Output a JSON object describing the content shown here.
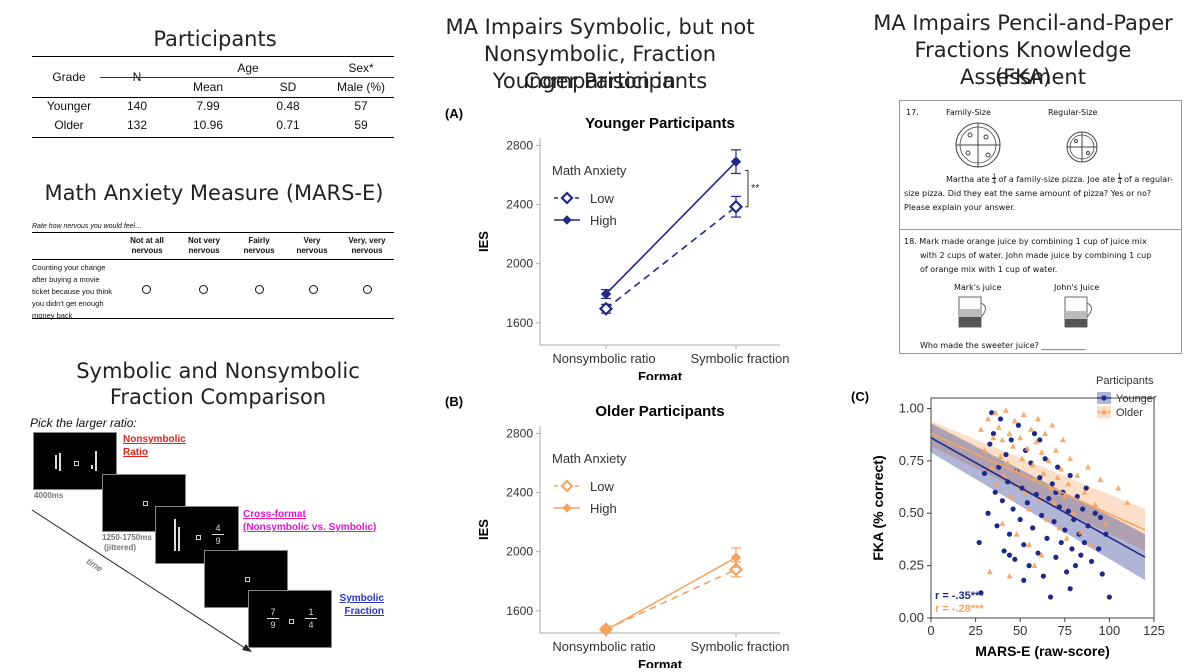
{
  "colors": {
    "navy": "#1f2a86",
    "orange": "#f4a462",
    "red": "#e0241b",
    "magenta": "#e312d6",
    "blue": "#2538c7",
    "gray": "#8c8c8c"
  },
  "participants": {
    "title": "Participants",
    "headers": {
      "grade": "Grade",
      "n": "N",
      "age": "Age",
      "sex": "Sex*",
      "mean": "Mean",
      "sd": "SD",
      "male": "Male (%)"
    },
    "rows": [
      {
        "grade": "Younger",
        "n": "140",
        "mean": "7.99",
        "sd": "0.48",
        "male": "57"
      },
      {
        "grade": "Older",
        "n": "132",
        "mean": "10.96",
        "sd": "0.71",
        "male": "59"
      }
    ]
  },
  "mars": {
    "title": "Math Anxiety Measure (MARS-E)",
    "prompt": "Rate how nervous you would feel…",
    "columns": [
      "Not at all nervous",
      "Not very nervous",
      "Fairly nervous",
      "Very nervous",
      "Very, very nervous"
    ],
    "item": "Counting your change after buying a movie ticket because you think you didn't get enough money back"
  },
  "comparison": {
    "title_line1": "Symbolic and Nonsymbolic",
    "title_line2": "Fraction Comparison",
    "instruction": "Pick the larger ratio:",
    "label_nonsym": "Nonsymbolic Ratio",
    "label_cross_1": "Cross-format",
    "label_cross_2": "(Nonsymbolic vs. Symbolic)",
    "label_sym": "Symbolic Fraction",
    "t1": "4000ms",
    "t2_1": "1250-1750ms",
    "t2_2": "(jittered)",
    "time": "time",
    "cross_num": "4",
    "cross_den": "9",
    "sym_left_num": "7",
    "sym_left_den": "9",
    "sym_right_num": "1",
    "sym_right_den": "4"
  },
  "middle": {
    "title_line1": "MA Impairs Symbolic, but not",
    "title_line2": "Nonsymbolic, Fraction Comparison in",
    "title_line3": "Younger Participants"
  },
  "right": {
    "title_line1": "MA Impairs Pencil-and-Paper",
    "title_line2": "Fractions Knowledge Assessment",
    "title_line3": "(FKA)"
  },
  "fka": {
    "q17_num": "17.",
    "family": "Family-Size",
    "regular": "Regular-Size",
    "q17_l1_a": "Martha ate",
    "q17_l1_b": "of a family-size pizza. Joe ate",
    "q17_l1_c": "of a regular-",
    "frac_num": "1",
    "frac_den": "4",
    "q17_l2": "size pizza. Did they eat the same amount of pizza? Yes or no?",
    "q17_l3": "Please explain your answer.",
    "q18_l1": "18.  Mark made orange juice by combining 1 cup of juice mix",
    "q18_l2": "with 2 cups of water.  John made juice by combining 1 cup",
    "q18_l3": "of orange mix with 1 cup of water.",
    "mark": "Mark's juice",
    "john": "John's Juice",
    "q18_q": "Who made the sweeter juice? ___________"
  },
  "chart_data": [
    {
      "panel": "(A)",
      "type": "line",
      "title": "Younger Participants",
      "xlabel": "Format",
      "ylabel": "IES",
      "categories": [
        "Nonsymbolic ratio",
        "Symbolic fraction"
      ],
      "ylim": [
        1450,
        2850
      ],
      "yticks": [
        1600,
        2000,
        2400,
        2800
      ],
      "legend_title": "Math Anxiety",
      "series": [
        {
          "name": "Low",
          "values": [
            1695,
            2385
          ],
          "err": [
            30,
            70
          ],
          "style": "dashed",
          "marker": "open-diamond"
        },
        {
          "name": "High",
          "values": [
            1795,
            2690
          ],
          "err": [
            30,
            80
          ],
          "style": "solid",
          "marker": "filled-diamond"
        }
      ],
      "annotation": "**"
    },
    {
      "panel": "(B)",
      "type": "line",
      "title": "Older Participants",
      "xlabel": "Format",
      "ylabel": "IES",
      "categories": [
        "Nonsymbolic ratio",
        "Symbolic fraction"
      ],
      "ylim": [
        1450,
        2850
      ],
      "yticks": [
        1600,
        2000,
        2400,
        2800
      ],
      "legend_title": "Math Anxiety",
      "series": [
        {
          "name": "Low",
          "values": [
            1475,
            1880
          ],
          "err": [
            20,
            50
          ],
          "style": "dashed",
          "marker": "open-diamond"
        },
        {
          "name": "High",
          "values": [
            1470,
            1960
          ],
          "err": [
            20,
            65
          ],
          "style": "solid",
          "marker": "filled-diamond"
        }
      ]
    },
    {
      "panel": "(C)",
      "type": "scatter",
      "xlabel": "MARS-E (raw-score)",
      "ylabel": "FKA (% correct)",
      "xlim": [
        0,
        125
      ],
      "ylim": [
        0,
        1.05
      ],
      "xticks": [
        0,
        25,
        50,
        75,
        100,
        125
      ],
      "yticks": [
        0.0,
        0.25,
        0.5,
        0.75,
        1.0
      ],
      "ytick_labels": [
        "0.00",
        "0.25",
        "0.50",
        "0.75",
        "1.00"
      ],
      "legend_title": "Participants",
      "series": [
        {
          "name": "Younger",
          "marker": "circle",
          "fit": {
            "x0": 0,
            "y0": 0.86,
            "x1": 120,
            "y1": 0.29
          },
          "points": [
            [
              27,
              0.36
            ],
            [
              28,
              0.12
            ],
            [
              30,
              0.69
            ],
            [
              32,
              0.5
            ],
            [
              33,
              0.83
            ],
            [
              35,
              0.88
            ],
            [
              36,
              0.6
            ],
            [
              37,
              0.44
            ],
            [
              38,
              0.72
            ],
            [
              39,
              0.95
            ],
            [
              40,
              0.56
            ],
            [
              41,
              0.32
            ],
            [
              42,
              0.78
            ],
            [
              43,
              0.65
            ],
            [
              44,
              0.4
            ],
            [
              45,
              0.85
            ],
            [
              46,
              0.52
            ],
            [
              47,
              0.28
            ],
            [
              48,
              0.7
            ],
            [
              49,
              0.92
            ],
            [
              50,
              0.47
            ],
            [
              51,
              0.62
            ],
            [
              52,
              0.35
            ],
            [
              53,
              0.8
            ],
            [
              54,
              0.55
            ],
            [
              55,
              0.25
            ],
            [
              56,
              0.74
            ],
            [
              57,
              0.43
            ],
            [
              58,
              0.88
            ],
            [
              59,
              0.59
            ],
            [
              60,
              0.31
            ],
            [
              61,
              0.67
            ],
            [
              62,
              0.49
            ],
            [
              63,
              0.2
            ],
            [
              64,
              0.76
            ],
            [
              65,
              0.38
            ],
            [
              66,
              0.57
            ],
            [
              67,
              0.1
            ],
            [
              68,
              0.64
            ],
            [
              69,
              0.46
            ],
            [
              70,
              0.29
            ],
            [
              71,
              0.72
            ],
            [
              72,
              0.53
            ],
            [
              73,
              0.36
            ],
            [
              74,
              0.6
            ],
            [
              75,
              0.42
            ],
            [
              76,
              0.22
            ],
            [
              77,
              0.51
            ],
            [
              78,
              0.68
            ],
            [
              79,
              0.33
            ],
            [
              80,
              0.47
            ],
            [
              81,
              0.25
            ],
            [
              82,
              0.58
            ],
            [
              83,
              0.4
            ],
            [
              84,
              0.3
            ],
            [
              85,
              0.52
            ],
            [
              86,
              0.36
            ],
            [
              88,
              0.44
            ],
            [
              90,
              0.27
            ],
            [
              92,
              0.5
            ],
            [
              94,
              0.33
            ],
            [
              96,
              0.21
            ],
            [
              98,
              0.4
            ],
            [
              100,
              0.1
            ],
            [
              34,
              0.98
            ],
            [
              44,
              0.3
            ],
            [
              52,
              0.18
            ],
            [
              61,
              0.85
            ],
            [
              70,
              0.6
            ],
            [
              78,
              0.14
            ],
            [
              87,
              0.62
            ],
            [
              95,
              0.48
            ]
          ]
        },
        {
          "name": "Older",
          "marker": "triangle",
          "fit": {
            "x0": 0,
            "y0": 0.88,
            "x1": 120,
            "y1": 0.42
          },
          "points": [
            [
              28,
              0.9
            ],
            [
              30,
              0.8
            ],
            [
              32,
              0.95
            ],
            [
              34,
              0.72
            ],
            [
              35,
              0.86
            ],
            [
              36,
              0.98
            ],
            [
              37,
              0.64
            ],
            [
              38,
              0.91
            ],
            [
              39,
              0.77
            ],
            [
              40,
              0.85
            ],
            [
              41,
              0.68
            ],
            [
              42,
              0.99
            ],
            [
              43,
              0.74
            ],
            [
              44,
              0.88
            ],
            [
              45,
              0.58
            ],
            [
              46,
              0.82
            ],
            [
              47,
              0.94
            ],
            [
              48,
              0.7
            ],
            [
              49,
              0.63
            ],
            [
              50,
              0.86
            ],
            [
              51,
              0.76
            ],
            [
              52,
              0.97
            ],
            [
              53,
              0.6
            ],
            [
              54,
              0.81
            ],
            [
              55,
              0.52
            ],
            [
              56,
              0.9
            ],
            [
              57,
              0.73
            ],
            [
              58,
              0.66
            ],
            [
              59,
              0.84
            ],
            [
              60,
              0.95
            ],
            [
              61,
              0.57
            ],
            [
              62,
              0.79
            ],
            [
              63,
              0.69
            ],
            [
              64,
              0.88
            ],
            [
              65,
              0.47
            ],
            [
              66,
              0.75
            ],
            [
              67,
              0.62
            ],
            [
              68,
              0.92
            ],
            [
              69,
              0.55
            ],
            [
              70,
              0.8
            ],
            [
              71,
              0.67
            ],
            [
              72,
              0.43
            ],
            [
              73,
              0.71
            ],
            [
              74,
              0.85
            ],
            [
              75,
              0.58
            ],
            [
              76,
              0.38
            ],
            [
              77,
              0.64
            ],
            [
              78,
              0.76
            ],
            [
              80,
              0.5
            ],
            [
              82,
              0.68
            ],
            [
              84,
              0.41
            ],
            [
              86,
              0.6
            ],
            [
              88,
              0.72
            ],
            [
              90,
              0.35
            ],
            [
              92,
              0.54
            ],
            [
              95,
              0.66
            ],
            [
              98,
              0.45
            ],
            [
              105,
              0.62
            ],
            [
              110,
              0.55
            ],
            [
              40,
              0.45
            ],
            [
              48,
              0.4
            ],
            [
              55,
              0.35
            ],
            [
              62,
              0.3
            ],
            [
              33,
              0.22
            ],
            [
              44,
              0.2
            ],
            [
              58,
              0.25
            ]
          ]
        }
      ],
      "annotations": [
        "r = -.35***",
        "r = -.28***"
      ]
    }
  ]
}
